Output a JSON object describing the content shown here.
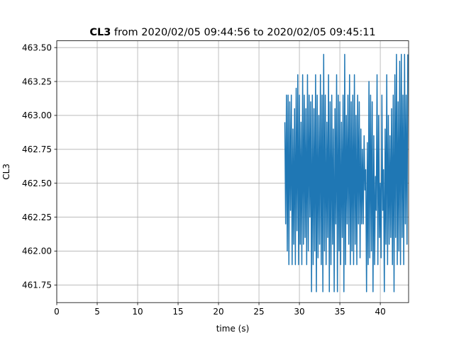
{
  "chart_data": {
    "type": "line",
    "title": {
      "bold": "CL3",
      "rest": " from 2020/02/05 09:44:56 to 2020/02/05 09:45:11"
    },
    "xlabel": "time (s)",
    "ylabel": "CL3",
    "xlim": [
      0,
      43.5
    ],
    "ylim": [
      461.62,
      463.55
    ],
    "xticks": [
      0,
      5,
      10,
      15,
      20,
      25,
      30,
      35,
      40
    ],
    "xtick_labels": [
      "0",
      "5",
      "10",
      "15",
      "20",
      "25",
      "30",
      "35",
      "40"
    ],
    "yticks": [
      461.75,
      462.0,
      462.25,
      462.5,
      462.75,
      463.0,
      463.25,
      463.5
    ],
    "ytick_labels": [
      "461.75",
      "462.00",
      "462.25",
      "462.50",
      "462.75",
      "463.00",
      "463.25",
      "463.50"
    ],
    "grid": true,
    "series": [
      {
        "color": "#1f77b4",
        "x": [
          28.2,
          28.3,
          28.4,
          28.5,
          28.6,
          28.7,
          28.8,
          28.9,
          29.0,
          29.1,
          29.2,
          29.3,
          29.4,
          29.5,
          29.6,
          29.7,
          29.8,
          29.9,
          30.0,
          30.1,
          30.2,
          30.3,
          30.4,
          30.5,
          30.6,
          30.7,
          30.8,
          30.9,
          31.0,
          31.1,
          31.2,
          31.3,
          31.4,
          31.5,
          31.6,
          31.7,
          31.8,
          31.9,
          32.0,
          32.1,
          32.2,
          32.3,
          32.4,
          32.5,
          32.6,
          32.7,
          32.8,
          32.9,
          33.0,
          33.1,
          33.2,
          33.3,
          33.4,
          33.5,
          33.6,
          33.7,
          33.8,
          33.9,
          34.0,
          34.1,
          34.2,
          34.3,
          34.4,
          34.5,
          34.6,
          34.7,
          34.8,
          34.9,
          35.0,
          35.1,
          35.2,
          35.3,
          35.4,
          35.5,
          35.6,
          35.7,
          35.8,
          35.9,
          36.0,
          36.1,
          36.2,
          36.3,
          36.4,
          36.5,
          36.6,
          36.7,
          36.8,
          36.9,
          37.0,
          37.1,
          37.2,
          37.3,
          37.4,
          37.5,
          37.6,
          37.7,
          37.8,
          37.9,
          38.0,
          38.1,
          38.2,
          38.3,
          38.4,
          38.5,
          38.6,
          38.7,
          38.8,
          38.9,
          39.0,
          39.1,
          39.2,
          39.3,
          39.4,
          39.5,
          39.6,
          39.7,
          39.8,
          39.9,
          40.0,
          40.1,
          40.2,
          40.3,
          40.4,
          40.5,
          40.6,
          40.7,
          40.8,
          40.9,
          41.0,
          41.1,
          41.2,
          41.3,
          41.4,
          41.5,
          41.6,
          41.7,
          41.8,
          41.9,
          42.0,
          42.1,
          42.2,
          42.3,
          42.4,
          42.5,
          42.6,
          42.7,
          42.8,
          42.9,
          43.0,
          43.1,
          43.2,
          43.3,
          43.4
        ],
        "y": [
          462.95,
          462.2,
          463.15,
          462.0,
          463.15,
          461.9,
          463.1,
          462.3,
          463.15,
          461.9,
          462.9,
          462.05,
          463.05,
          461.9,
          463.2,
          462.15,
          463.3,
          461.9,
          463.15,
          462.05,
          462.95,
          461.9,
          463.3,
          462.05,
          463.15,
          462.1,
          463.05,
          461.9,
          463.3,
          462.0,
          463.15,
          462.25,
          463.1,
          461.7,
          463.15,
          461.9,
          463.05,
          462.0,
          463.3,
          461.7,
          463.15,
          461.95,
          463.0,
          462.05,
          463.3,
          461.9,
          463.15,
          461.7,
          463.45,
          462.0,
          463.15,
          461.9,
          462.95,
          462.1,
          463.3,
          461.7,
          463.1,
          461.9,
          463.15,
          462.05,
          462.9,
          461.7,
          463.05,
          462.2,
          463.3,
          461.7,
          463.15,
          462.0,
          463.1,
          461.9,
          462.95,
          462.1,
          463.15,
          461.7,
          463.45,
          461.9,
          463.0,
          462.2,
          463.15,
          462.05,
          463.3,
          461.9,
          463.1,
          462.0,
          463.15,
          461.9,
          463.3,
          462.05,
          463.0,
          461.9,
          463.15,
          462.2,
          463.1,
          461.95,
          462.9,
          462.2,
          462.75,
          462.2,
          462.85,
          462.45,
          462.6,
          461.7,
          462.8,
          461.9,
          463.25,
          461.95,
          463.15,
          462.0,
          463.1,
          461.7,
          462.85,
          461.9,
          462.55,
          462.3,
          463.3,
          461.9,
          463.0,
          462.1,
          462.5,
          461.95,
          463.15,
          462.3,
          462.6,
          461.7,
          462.9,
          462.05,
          463.3,
          461.9,
          463.0,
          462.05,
          462.85,
          462.1,
          463.05,
          461.9,
          463.15,
          461.7,
          463.3,
          462.1,
          463.45,
          461.9,
          463.1,
          462.0,
          463.4,
          461.9,
          463.45,
          462.1,
          463.15,
          461.9,
          463.45,
          462.2,
          463.15,
          462.05,
          463.45
        ]
      }
    ]
  }
}
